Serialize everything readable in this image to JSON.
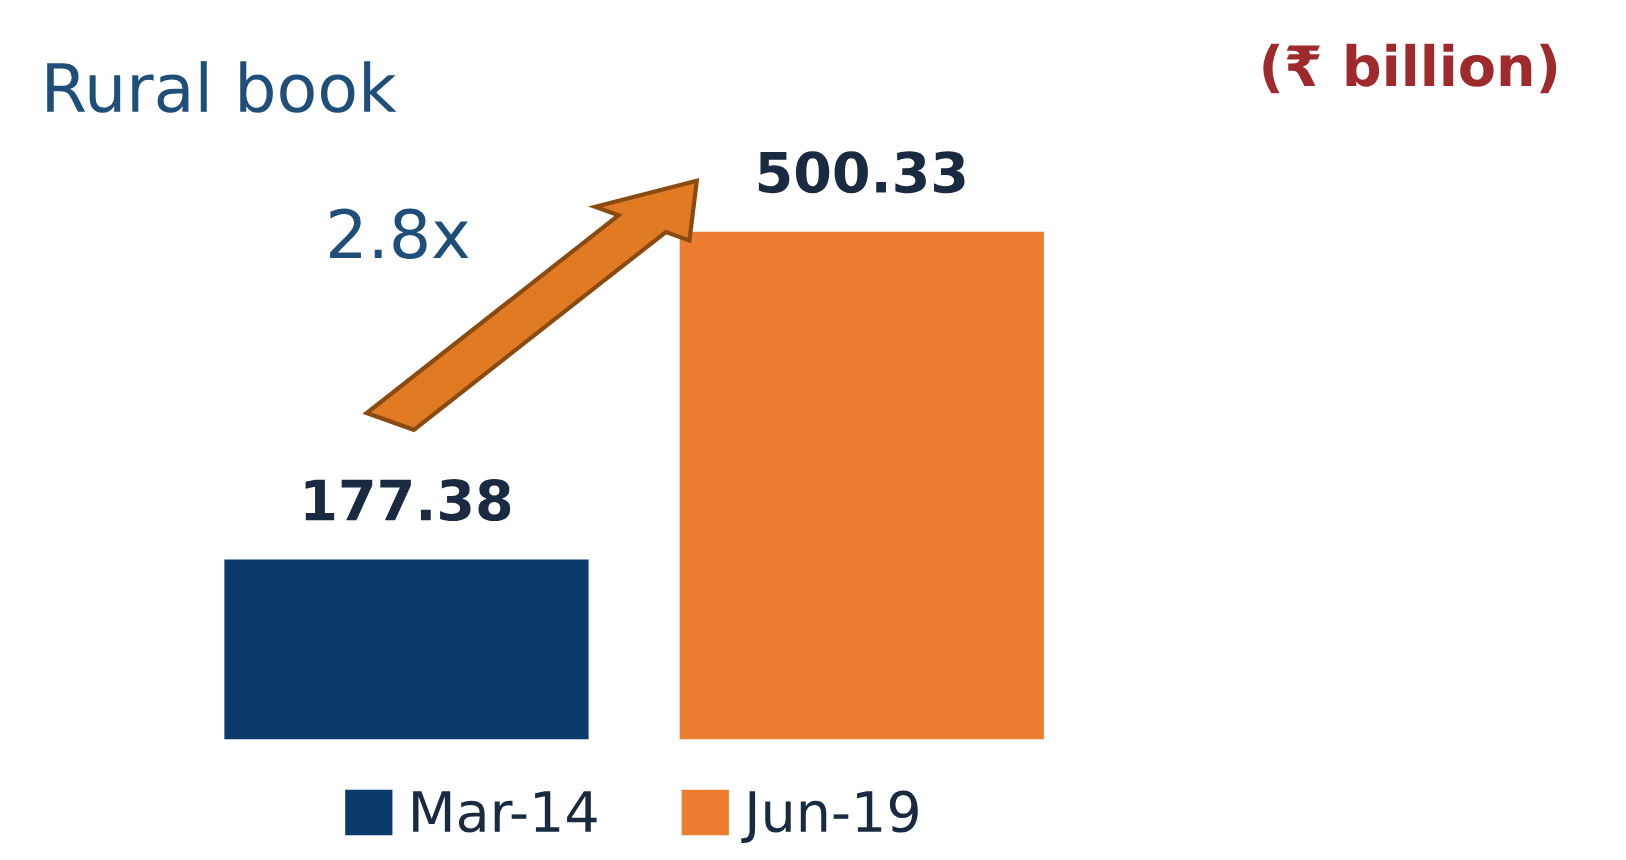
{
  "chart_data": {
    "type": "bar",
    "title": "Rural book",
    "categories": [
      null
    ],
    "series": [
      {
        "name": "Mar-14",
        "color": "#0b3a6b",
        "values": [
          177.38
        ]
      },
      {
        "name": "Jun-19",
        "color": "#ed7d31",
        "values": [
          500.33
        ]
      }
    ],
    "data_labels": true,
    "legend": "bottom",
    "grid": false,
    "annotations": [
      "2.8x",
      "(₹ billion)"
    ]
  }
}
